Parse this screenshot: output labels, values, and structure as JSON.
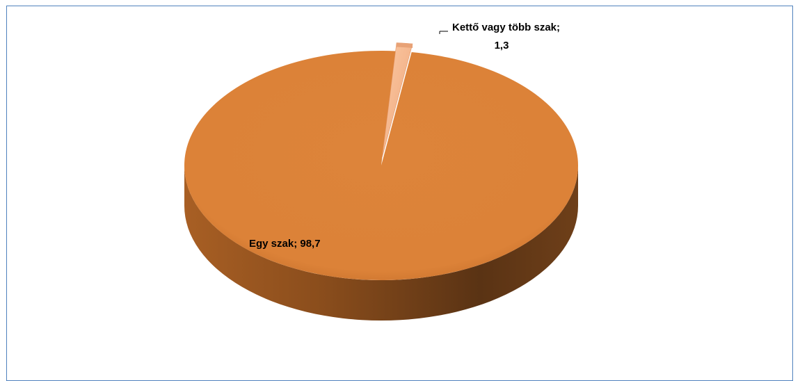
{
  "chart_data": {
    "type": "pie",
    "style": "3d",
    "categories": [
      "Egy szak",
      "Kettő vagy több szak"
    ],
    "values": [
      98.7,
      1.3
    ],
    "data_labels": [
      {
        "category": "Egy szak",
        "value": "98,7",
        "text": "Egy szak; 98,7"
      },
      {
        "category": "Kettő vagy több szak",
        "value": "1,3",
        "line1": "Kettő vagy több szak;",
        "line2": "1,3"
      }
    ],
    "title": "",
    "legend": "none",
    "colors": {
      "main": "#dd843a",
      "small": "#f4b183",
      "side_dark": "#5a3314",
      "frame": "#4f81bd"
    }
  }
}
